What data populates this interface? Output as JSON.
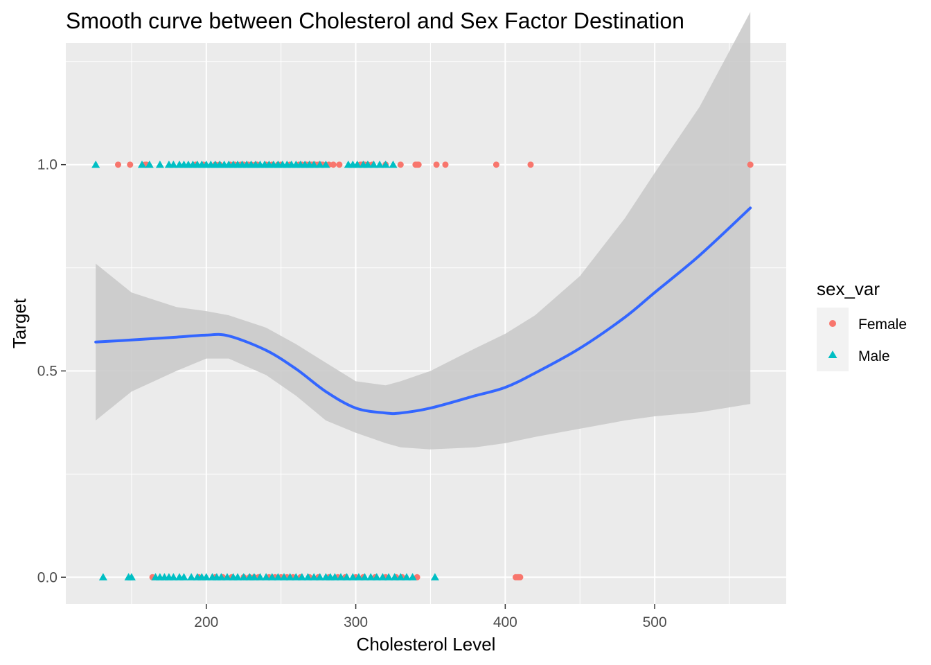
{
  "chart_data": {
    "type": "scatter",
    "title": "Smooth curve between Cholesterol and Sex Factor Destination",
    "xlabel": "Cholesterol Level",
    "ylabel": "Target",
    "xlim": [
      106,
      588
    ],
    "ylim": [
      -0.065,
      1.295
    ],
    "x_ticks": [
      {
        "value": 200,
        "label": "200"
      },
      {
        "value": 300,
        "label": "300"
      },
      {
        "value": 400,
        "label": "400"
      },
      {
        "value": 500,
        "label": "500"
      }
    ],
    "y_ticks": [
      {
        "value": 0.0,
        "label": "0.0"
      },
      {
        "value": 0.5,
        "label": "0.5"
      },
      {
        "value": 1.0,
        "label": "1.0"
      }
    ],
    "grid": true,
    "legend": {
      "title": "sex_var",
      "position": "right",
      "entries": [
        {
          "label": "Female",
          "shape": "circle",
          "color": "#F8766D"
        },
        {
          "label": "Male",
          "shape": "triangle",
          "color": "#00BFC4"
        }
      ]
    },
    "colors": {
      "panel_bg": "#EBEBEB",
      "grid": "#FFFFFF",
      "smooth_line": "#3366FF",
      "ribbon": "#C8C8C8",
      "tick_text": "#4D4D4D"
    },
    "series": [
      {
        "name": "Female",
        "shape": "circle",
        "color": "#F8766D",
        "points_y1": [
          141,
          149,
          159,
          160,
          193,
          198,
          206,
          209,
          216,
          219,
          223,
          225,
          228,
          230,
          233,
          234,
          240,
          244,
          248,
          250,
          256,
          262,
          264,
          267,
          269,
          270,
          271,
          273,
          275,
          277,
          278,
          282,
          285,
          289,
          303,
          304,
          305,
          306,
          308,
          311,
          320,
          330,
          340,
          341,
          342,
          354,
          360,
          394,
          417,
          564
        ],
        "points_y0": [
          164,
          195,
          206,
          211,
          217,
          225,
          229,
          232,
          235,
          242,
          246,
          250,
          254,
          258,
          263,
          269,
          275,
          282,
          288,
          293,
          300,
          305,
          313,
          320,
          327,
          331,
          341,
          407,
          408,
          409,
          410
        ]
      },
      {
        "name": "Male",
        "shape": "triangle",
        "color": "#00BFC4",
        "points_y1": [
          126,
          157,
          162,
          169,
          175,
          178,
          182,
          185,
          188,
          191,
          194,
          197,
          200,
          203,
          206,
          209,
          212,
          215,
          218,
          221,
          224,
          227,
          230,
          233,
          236,
          239,
          242,
          245,
          248,
          251,
          254,
          257,
          260,
          263,
          266,
          269,
          272,
          276,
          280,
          295,
          298,
          301,
          305,
          308,
          312,
          316,
          320,
          325
        ],
        "points_y0": [
          131,
          148,
          150,
          166,
          169,
          172,
          175,
          178,
          182,
          185,
          190,
          194,
          197,
          200,
          204,
          207,
          210,
          214,
          218,
          221,
          225,
          229,
          232,
          236,
          240,
          244,
          248,
          252,
          256,
          260,
          264,
          268,
          272,
          276,
          280,
          283,
          286,
          290,
          294,
          298,
          302,
          306,
          310,
          314,
          318,
          322,
          326,
          330,
          334,
          338,
          353
        ]
      }
    ],
    "smooth": {
      "x": [
        126,
        150,
        180,
        200,
        215,
        240,
        260,
        280,
        300,
        320,
        330,
        350,
        380,
        400,
        420,
        450,
        480,
        500,
        530,
        564
      ],
      "y": [
        0.57,
        0.575,
        0.582,
        0.587,
        0.585,
        0.55,
        0.505,
        0.45,
        0.41,
        0.398,
        0.398,
        0.41,
        0.44,
        0.46,
        0.495,
        0.555,
        0.63,
        0.69,
        0.78,
        0.895
      ],
      "lower": [
        0.38,
        0.45,
        0.5,
        0.53,
        0.53,
        0.49,
        0.44,
        0.38,
        0.35,
        0.325,
        0.315,
        0.31,
        0.315,
        0.325,
        0.34,
        0.36,
        0.38,
        0.39,
        0.4,
        0.42
      ],
      "upper": [
        0.76,
        0.69,
        0.655,
        0.645,
        0.635,
        0.605,
        0.565,
        0.52,
        0.475,
        0.465,
        0.475,
        0.5,
        0.555,
        0.59,
        0.635,
        0.73,
        0.87,
        0.98,
        1.14,
        1.37
      ]
    }
  }
}
